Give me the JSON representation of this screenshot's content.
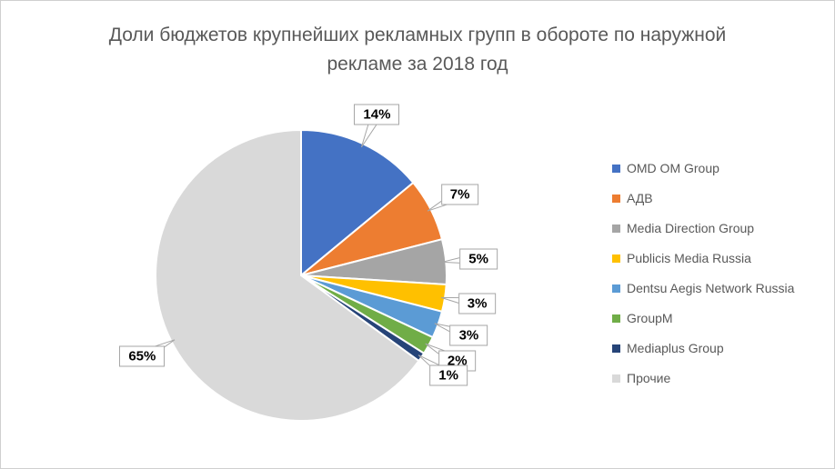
{
  "chart_data": {
    "type": "pie",
    "title": "Доли бюджетов крупнейших рекламных групп в обороте по наружной рекламе за 2018 год",
    "labels": [
      "OMD OM Group",
      "АДВ",
      "Media Direction Group",
      "Publicis Media Russia",
      "Dentsu Aegis Network Russia",
      "GroupM",
      "Mediaplus Group",
      "Прочие"
    ],
    "values": [
      14,
      7,
      5,
      3,
      3,
      2,
      1,
      65
    ],
    "data_labels": [
      "14%",
      "7%",
      "5%",
      "3%",
      "3%",
      "2%",
      "1%",
      "65%"
    ],
    "unit": "%",
    "colors": [
      "#4472C4",
      "#ED7D31",
      "#A5A5A5",
      "#FFC000",
      "#5B9BD5",
      "#70AD47",
      "#264478",
      "#D9D9D9"
    ],
    "legend_position": "right",
    "title_color": "#595959",
    "legend_text_color": "#595959",
    "callout_border_color": "#A6A6A6"
  }
}
